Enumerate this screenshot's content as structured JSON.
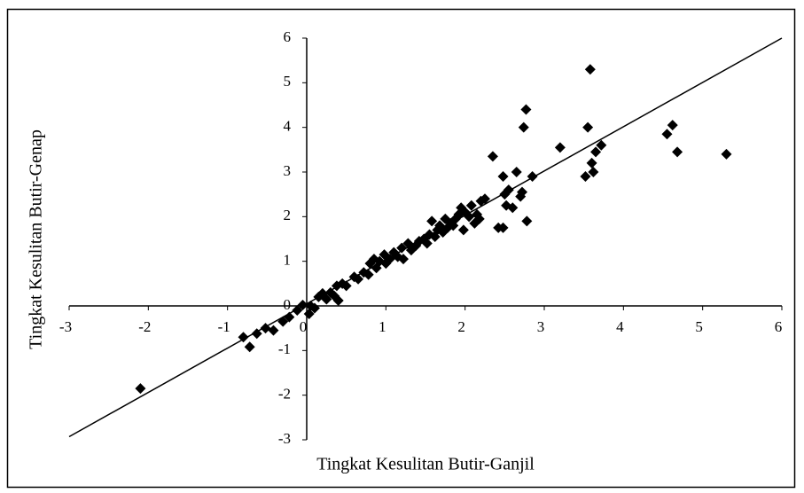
{
  "chart_data": {
    "type": "scatter",
    "x_label": "Tingkat Kesulitan Butir-Ganjil",
    "y_label": "Tingkat Kesulitan Butir-Genap",
    "xlim": [
      -3,
      6
    ],
    "ylim": [
      -3,
      6
    ],
    "xticks": [
      -3,
      -2,
      -1,
      0,
      1,
      2,
      3,
      4,
      5,
      6
    ],
    "yticks": [
      -3,
      -2,
      -1,
      0,
      1,
      2,
      3,
      4,
      5,
      6
    ],
    "color": "#000000",
    "trend_line": {
      "x": [
        -3,
        6
      ],
      "y": [
        -2.93,
        6
      ]
    },
    "x": [
      -2.1,
      -0.8,
      -0.72,
      -0.63,
      -0.52,
      -0.42,
      -0.3,
      -0.22,
      -0.12,
      -0.05,
      0.03,
      0.05,
      0.1,
      0.15,
      0.2,
      0.25,
      0.3,
      0.35,
      0.38,
      0.4,
      0.45,
      0.5,
      0.6,
      0.65,
      0.72,
      0.78,
      0.8,
      0.85,
      0.88,
      0.92,
      0.98,
      1.0,
      1.05,
      1.1,
      1.15,
      1.2,
      1.22,
      1.28,
      1.32,
      1.38,
      1.42,
      1.48,
      1.52,
      1.55,
      1.58,
      1.62,
      1.65,
      1.68,
      1.72,
      1.75,
      1.78,
      1.82,
      1.85,
      1.88,
      1.92,
      1.95,
      1.98,
      2.0,
      2.05,
      2.08,
      2.12,
      2.15,
      2.18,
      2.2,
      2.25,
      2.35,
      2.42,
      2.48,
      2.48,
      2.5,
      2.52,
      2.55,
      2.6,
      2.65,
      2.7,
      2.72,
      2.74,
      2.77,
      2.78,
      2.85,
      3.2,
      3.52,
      3.55,
      3.58,
      3.6,
      3.62,
      3.65,
      3.72,
      4.55,
      4.62,
      4.68,
      5.3
    ],
    "y": [
      -1.85,
      -0.7,
      -0.92,
      -0.62,
      -0.5,
      -0.55,
      -0.35,
      -0.25,
      -0.1,
      0.02,
      -0.18,
      0.0,
      -0.05,
      0.2,
      0.28,
      0.15,
      0.3,
      0.22,
      0.45,
      0.12,
      0.5,
      0.45,
      0.65,
      0.6,
      0.75,
      0.7,
      0.95,
      1.05,
      0.85,
      1.0,
      1.15,
      0.95,
      1.05,
      1.2,
      1.1,
      1.3,
      1.05,
      1.4,
      1.25,
      1.35,
      1.45,
      1.5,
      1.4,
      1.6,
      1.9,
      1.55,
      1.7,
      1.8,
      1.65,
      1.95,
      1.75,
      1.85,
      1.8,
      1.95,
      2.05,
      2.2,
      1.7,
      2.1,
      2.0,
      2.25,
      1.85,
      2.05,
      1.95,
      2.35,
      2.4,
      3.35,
      1.75,
      1.75,
      2.9,
      2.5,
      2.25,
      2.6,
      2.2,
      3.0,
      2.45,
      2.55,
      4.0,
      4.4,
      1.9,
      2.9,
      3.55,
      2.9,
      4.0,
      5.3,
      3.2,
      3.0,
      3.45,
      3.6,
      3.85,
      4.05,
      3.45,
      3.4
    ]
  }
}
